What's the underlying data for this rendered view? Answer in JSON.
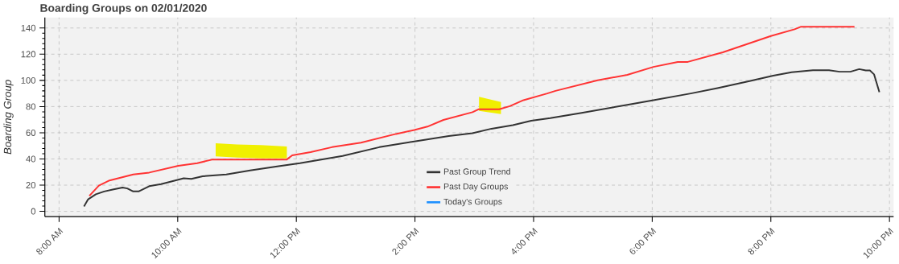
{
  "chart_data": {
    "type": "line",
    "title": "Boarding Groups on 02/01/2020",
    "ylabel": "Boarding Group",
    "xlim": [
      7.76,
      22.07
    ],
    "ylim": [
      -4,
      148
    ],
    "xticks": [
      {
        "value": 8,
        "label": "8:00 AM"
      },
      {
        "value": 10,
        "label": "10:00 AM"
      },
      {
        "value": 12,
        "label": "12:00 PM"
      },
      {
        "value": 14,
        "label": "2:00 PM"
      },
      {
        "value": 16,
        "label": "4:00 PM"
      },
      {
        "value": 18,
        "label": "6:00 PM"
      },
      {
        "value": 20,
        "label": "8:00 PM"
      },
      {
        "value": 22,
        "label": "10:00 PM"
      }
    ],
    "yticks": [
      0,
      20,
      40,
      60,
      80,
      100,
      120,
      140
    ],
    "grid": true,
    "legend": "bottom",
    "line_style": "solid",
    "marker": "none",
    "series": [
      {
        "color": "#f0f000",
        "x": [
          10.64,
          11.0,
          11.4,
          11.84
        ],
        "values": [
          null,
          null,
          null,
          null
        ],
        "lower": [
          42,
          41,
          40.5,
          40.5
        ],
        "upper": [
          52,
          51,
          50.6,
          49.5
        ]
      },
      {
        "color": "#f0f000",
        "x": [
          15.08,
          15.45
        ],
        "values": [
          null,
          null
        ],
        "lower": [
          76.7,
          74.3
        ],
        "upper": [
          87.4,
          83.4
        ]
      },
      {
        "name": "Past Group Trend",
        "color": "#333333",
        "x": [
          8.42,
          8.49,
          8.62,
          8.76,
          8.92,
          9.07,
          9.15,
          9.25,
          9.34,
          9.52,
          9.72,
          10.01,
          10.1,
          10.23,
          10.42,
          10.82,
          11.22,
          11.7,
          12.06,
          12.78,
          13.4,
          13.99,
          14.57,
          14.97,
          15.29,
          15.65,
          15.96,
          16.28,
          16.81,
          17.58,
          18.02,
          18.65,
          19.1,
          19.64,
          20.04,
          20.35,
          20.71,
          20.98,
          21.16,
          21.34,
          21.49,
          21.6,
          21.67,
          21.74,
          21.83
        ],
        "values": [
          3.8,
          9.2,
          13,
          15.2,
          16.8,
          18.2,
          17.5,
          15.2,
          15.2,
          19.2,
          20.8,
          24.2,
          25.2,
          24.8,
          26.8,
          28.2,
          31.2,
          34.5,
          36.8,
          42.3,
          49,
          53.4,
          57.5,
          59.7,
          63.1,
          65.8,
          69.2,
          71.2,
          75.2,
          81.3,
          84.8,
          90,
          94.1,
          99.5,
          103.6,
          106.2,
          107.8,
          107.8,
          106.6,
          106.6,
          108.6,
          107.6,
          107.6,
          104.6,
          91
        ]
      },
      {
        "name": "Past Day Groups",
        "color": "#ff3333",
        "x": [
          8.51,
          8.67,
          8.85,
          9.25,
          9.52,
          10.01,
          10.33,
          10.59,
          11.84,
          11.93,
          12.24,
          12.6,
          13.09,
          13.68,
          13.99,
          14.21,
          14.48,
          14.97,
          15.07,
          15.42,
          15.6,
          15.83,
          16.23,
          16.37,
          17.08,
          17.58,
          18.02,
          18.43,
          18.6,
          19.19,
          19.5,
          20.0,
          20.4,
          20.51,
          21.41
        ],
        "values": [
          11.8,
          19.6,
          23.6,
          28.2,
          29.6,
          34.8,
          36.8,
          39.6,
          39.6,
          42.8,
          45.2,
          49,
          52.4,
          59.1,
          62.1,
          64.7,
          69.8,
          75.7,
          77.9,
          77.9,
          80.3,
          84.9,
          90,
          92,
          100.1,
          104.2,
          110.3,
          114.1,
          114.1,
          121.4,
          126.2,
          133.9,
          139,
          141,
          141
        ]
      },
      {
        "name": "Today's Groups",
        "color": "#1e90ff"
      }
    ]
  }
}
